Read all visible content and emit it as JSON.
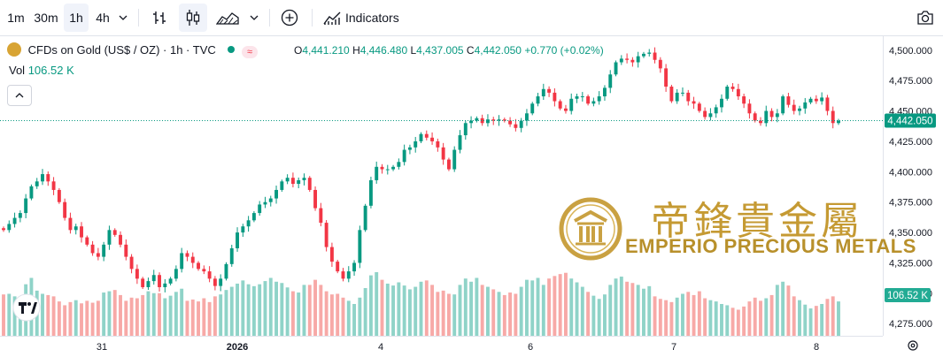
{
  "toolbar": {
    "intervals": [
      "1m",
      "30m",
      "1h",
      "4h"
    ],
    "active_interval": "1h",
    "indicators_label": "Indicators"
  },
  "legend": {
    "symbol": "CFDs on Gold (US$ / OZ) · 1h · TVC",
    "open_label": "O",
    "open": "4,441.210",
    "high_label": "H",
    "high": "4,446.480",
    "low_label": "L",
    "low": "4,437.005",
    "close_label": "C",
    "close": "4,442.050",
    "change": "+0.770 (+0.02%)",
    "vol_label": "Vol",
    "vol_value": "106.52 K"
  },
  "watermark": {
    "chinese": "帝鋒貴金屬",
    "english": "EMPERIO PRECIOUS METALS"
  },
  "colors": {
    "up": "#089981",
    "down": "#f23645",
    "up_vol": "#8fd3c8",
    "down_vol": "#f7a9a7",
    "watermark": "#c59a33"
  },
  "chart_data": {
    "type": "candlestick",
    "y_ticks": [
      "4,500.000",
      "4,475.000",
      "4,450.000",
      "4,425.000",
      "4,400.000",
      "4,375.000",
      "4,350.000",
      "4,325.000",
      "4,300.000",
      "4,275.000"
    ],
    "ylim": [
      4265,
      4510
    ],
    "x_ticks": [
      "31",
      "2026",
      "4",
      "6",
      "7",
      "8"
    ],
    "last_price": "4,442.050",
    "last_volume": "106.52 K",
    "closes": [
      4352,
      4357,
      4362,
      4366,
      4378,
      4388,
      4392,
      4398,
      4392,
      4385,
      4375,
      4362,
      4352,
      4355,
      4346,
      4340,
      4333,
      4330,
      4340,
      4352,
      4348,
      4340,
      4330,
      4320,
      4312,
      4305,
      4310,
      4315,
      4305,
      4308,
      4312,
      4320,
      4333,
      4330,
      4325,
      4320,
      4318,
      4312,
      4306,
      4312,
      4324,
      4337,
      4350,
      4355,
      4360,
      4366,
      4373,
      4375,
      4378,
      4385,
      4392,
      4395,
      4390,
      4393,
      4395,
      4385,
      4370,
      4358,
      4338,
      4326,
      4318,
      4312,
      4318,
      4325,
      4352,
      4372,
      4393,
      4404,
      4402,
      4402,
      4404,
      4408,
      4418,
      4420,
      4425,
      4431,
      4428,
      4425,
      4420,
      4410,
      4402,
      4418,
      4430,
      4440,
      4442,
      4444,
      4440,
      4443,
      4442,
      4443,
      4442,
      4439,
      4436,
      4442,
      4448,
      4456,
      4462,
      4468,
      4465,
      4458,
      4452,
      4450,
      4460,
      4462,
      4462,
      4456,
      4458,
      4462,
      4469,
      4480,
      4490,
      4493,
      4492,
      4490,
      4495,
      4497,
      4498,
      4492,
      4485,
      4470,
      4458,
      4465,
      4465,
      4458,
      4456,
      4450,
      4445,
      4448,
      4453,
      4460,
      4470,
      4468,
      4462,
      4456,
      4448,
      4442,
      4440,
      4450,
      4445,
      4448,
      4462,
      4455,
      4450,
      4452,
      4457,
      4460,
      4458,
      4461,
      4450,
      4440,
      4442
    ],
    "volumes": [
      65,
      66,
      62,
      59,
      81,
      91,
      71,
      66,
      64,
      62,
      54,
      48,
      53,
      56,
      51,
      55,
      52,
      55,
      68,
      70,
      72,
      64,
      55,
      60,
      59,
      64,
      70,
      67,
      67,
      59,
      63,
      69,
      74,
      55,
      57,
      54,
      59,
      53,
      62,
      65,
      72,
      77,
      82,
      87,
      81,
      78,
      81,
      86,
      91,
      85,
      83,
      76,
      70,
      68,
      80,
      80,
      88,
      80,
      70,
      65,
      66,
      60,
      55,
      50,
      60,
      75,
      95,
      100,
      88,
      82,
      79,
      84,
      79,
      73,
      77,
      85,
      87,
      80,
      69,
      71,
      66,
      65,
      80,
      90,
      85,
      91,
      80,
      77,
      73,
      69,
      64,
      68,
      66,
      77,
      88,
      87,
      91,
      80,
      90,
      94,
      97,
      99,
      90,
      84,
      77,
      69,
      63,
      58,
      65,
      80,
      90,
      93,
      85,
      83,
      80,
      74,
      78,
      62,
      58,
      56,
      53,
      60,
      66,
      69,
      64,
      70,
      59,
      56,
      54,
      50,
      48,
      44,
      41,
      46,
      54,
      60,
      55,
      59,
      64,
      80,
      85,
      79,
      62,
      56,
      49,
      43,
      47,
      50,
      58,
      62,
      54
    ]
  }
}
